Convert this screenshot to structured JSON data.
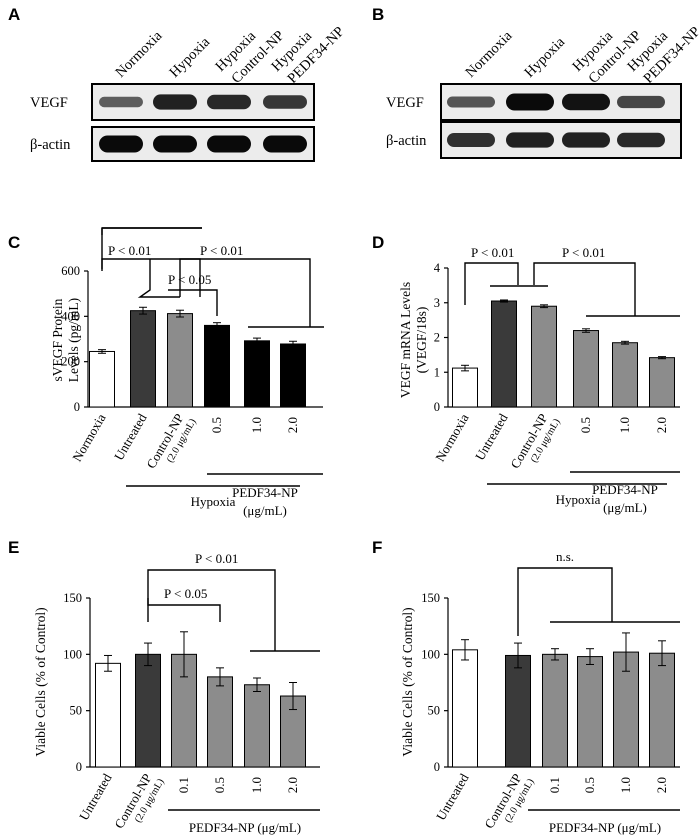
{
  "chart_data": [
    {
      "panel": "A",
      "type": "blot",
      "lanes": [
        "Normoxia",
        "Hypoxia",
        "Hypoxia Control-NP",
        "Hypoxia PEDF34-NP"
      ],
      "bands": [
        {
          "name": "VEGF",
          "intensity": [
            0.45,
            0.85,
            0.8,
            0.7
          ]
        },
        {
          "name": "β-actin",
          "intensity": [
            1.0,
            1.0,
            1.0,
            1.0
          ]
        }
      ]
    },
    {
      "panel": "B",
      "type": "blot",
      "lanes": [
        "Normoxia",
        "Hypoxia",
        "Hypoxia Control-NP",
        "Hypoxia PEDF34-NP"
      ],
      "bands": [
        {
          "name": "VEGF",
          "intensity": [
            0.5,
            1.0,
            0.95,
            0.6
          ]
        },
        {
          "name": "β-actin",
          "intensity": [
            0.75,
            0.85,
            0.85,
            0.8
          ]
        }
      ]
    },
    {
      "panel": "C",
      "type": "bar",
      "ylabel": [
        "sVEGF Protein",
        "Levels (pg/mL)"
      ],
      "ylim": [
        0,
        600
      ],
      "yticks": [
        "0",
        "200",
        "400",
        "600"
      ],
      "categories": [
        {
          "label": "Normoxia"
        },
        {
          "label": "Untreated"
        },
        {
          "label": "Control-NP",
          "sub": "(2.0 μg/mL)"
        },
        {
          "label": "0.5"
        },
        {
          "label": "1.0"
        },
        {
          "label": "2.0"
        }
      ],
      "values": [
        245,
        425,
        412,
        360,
        292,
        278
      ],
      "errors": [
        8,
        15,
        15,
        12,
        12,
        12
      ],
      "fills": [
        "#ffffff",
        "#3a3a3a",
        "#8c8c8c",
        "#000000",
        "#000000",
        "#000000"
      ],
      "group_label": "PEDF34-NP",
      "group_unit": "(μg/mL)",
      "condition_label": "Hypoxia",
      "annotations": [
        "P < 0.01",
        "P < 0.05",
        "P < 0.01"
      ]
    },
    {
      "panel": "D",
      "type": "bar",
      "ylabel": [
        "VEGF mRNA Levels",
        "(VEGF/18s)"
      ],
      "ylim": [
        0,
        4
      ],
      "yticks": [
        "0",
        "1",
        "2",
        "3",
        "4"
      ],
      "categories": [
        {
          "label": "Normoxia"
        },
        {
          "label": "Untreated"
        },
        {
          "label": "Control-NP",
          "sub": "(2.0 μg/mL)"
        },
        {
          "label": "0.5"
        },
        {
          "label": "1.0"
        },
        {
          "label": "2.0"
        }
      ],
      "values": [
        1.12,
        3.05,
        2.9,
        2.2,
        1.85,
        1.42
      ],
      "errors": [
        0.08,
        0.03,
        0.04,
        0.05,
        0.04,
        0.03
      ],
      "fills": [
        "#ffffff",
        "#3a3a3a",
        "#8c8c8c",
        "#8c8c8c",
        "#8c8c8c",
        "#8c8c8c"
      ],
      "group_label": "PEDF34-NP",
      "group_unit": "(μg/mL)",
      "condition_label": "Hypoxia",
      "annotations": [
        "P < 0.01",
        "P < 0.01"
      ]
    },
    {
      "panel": "E",
      "type": "bar",
      "ylabel": [
        "Viable Cells (% of Control)"
      ],
      "ylim": [
        0,
        150
      ],
      "yticks": [
        "0",
        "50",
        "100",
        "150"
      ],
      "categories": [
        {
          "label": "Untreated"
        },
        {
          "label": "Control-NP",
          "sub": "(2.0 μg/mL)"
        },
        {
          "label": "0.1"
        },
        {
          "label": "0.5"
        },
        {
          "label": "1.0"
        },
        {
          "label": "2.0"
        }
      ],
      "values": [
        92,
        100,
        100,
        80,
        73,
        63
      ],
      "errors": [
        7,
        10,
        20,
        8,
        6,
        12
      ],
      "fills": [
        "#ffffff",
        "#3a3a3a",
        "#8c8c8c",
        "#8c8c8c",
        "#8c8c8c",
        "#8c8c8c"
      ],
      "group_label": "PEDF34-NP (μg/mL)",
      "annotations": [
        "P < 0.01",
        "P < 0.05"
      ]
    },
    {
      "panel": "F",
      "type": "bar",
      "ylabel": [
        "Viable Cells (% of Control)"
      ],
      "ylim": [
        0,
        150
      ],
      "yticks": [
        "0",
        "50",
        "100",
        "150"
      ],
      "categories": [
        {
          "label": "Untreated"
        },
        {
          "label": "Control-NP",
          "sub": "(2.0 μg/mL)"
        },
        {
          "label": "0.1"
        },
        {
          "label": "0.5"
        },
        {
          "label": "1.0"
        },
        {
          "label": "2.0"
        }
      ],
      "values": [
        104,
        99,
        100,
        98,
        102,
        101
      ],
      "errors": [
        9,
        11,
        5,
        7,
        17,
        11
      ],
      "fills": [
        "#ffffff",
        "#3a3a3a",
        "#8c8c8c",
        "#8c8c8c",
        "#8c8c8c",
        "#8c8c8c"
      ],
      "group_label": "PEDF34-NP (μg/mL)",
      "annotations": [
        "n.s."
      ]
    }
  ]
}
